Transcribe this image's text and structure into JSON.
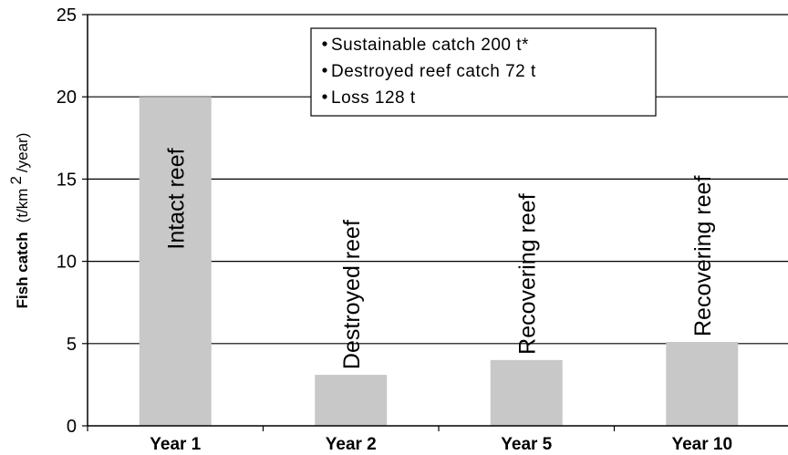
{
  "chart_data": {
    "type": "bar",
    "title": "",
    "xlabel": "",
    "ylabel": {
      "bold": "Fish catch",
      "unit_open": "(t/km",
      "unit_sup": "2",
      "unit_close": "/year)"
    },
    "ylim": [
      0,
      25
    ],
    "yticks": [
      "0",
      "5",
      "10",
      "15",
      "20",
      "25"
    ],
    "grid": true,
    "categories": [
      "Year 1",
      "Year 2",
      "Year 5",
      "Year 10"
    ],
    "values": [
      20,
      3.1,
      4,
      5.1
    ],
    "bar_labels": [
      "Intact reef",
      "Destroyed reef",
      "Recovering reef",
      "Recovering reef"
    ],
    "bar_color": "#c8c8c8",
    "legend_position": "top-center",
    "annotations": [
      "Sustainable catch 200 t*",
      "Destroyed reef catch 72 t",
      "Loss 128 t"
    ]
  }
}
